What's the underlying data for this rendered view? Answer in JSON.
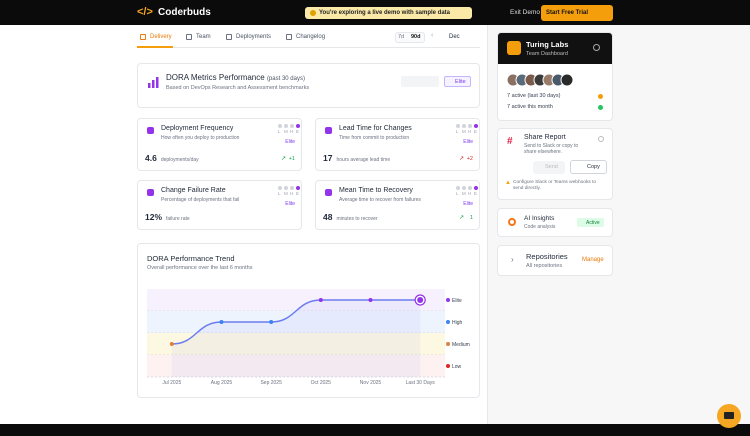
{
  "header": {
    "logo": "Coderbuds",
    "banner": "You're exploring a live demo with sample data",
    "exit": "Exit Demo",
    "trial": "Start Free Trial"
  },
  "tabs": [
    "Delivery",
    "Team",
    "Deployments",
    "Changelog"
  ],
  "range": [
    "7d",
    "90d"
  ],
  "month": "Dec",
  "summary": {
    "title": "DORA Metrics Performance",
    "period": "(past 30 days)",
    "subtitle": "Based on DevOps Research and Assessment benchmarks",
    "badge": "Elite"
  },
  "level_letters": [
    "L",
    "M",
    "H",
    "E"
  ],
  "metrics": [
    {
      "title": "Deployment Frequency",
      "desc": "How often you deploy to production",
      "badge": "Elite",
      "value": "4.6",
      "unit": "deployments/day",
      "trend": "+1",
      "trend_color": "#16a34a"
    },
    {
      "title": "Lead Time for Changes",
      "desc": "Time from commit to production",
      "badge": "Elite",
      "value": "17",
      "unit": "hours average lead time",
      "trend": "+2",
      "trend_color": "#dc2626"
    },
    {
      "title": "Change Failure Rate",
      "desc": "Percentage of deployments that fail",
      "badge": "Elite",
      "value": "12%",
      "unit": "failure rate"
    },
    {
      "title": "Mean Time to Recovery",
      "desc": "Average time to recover from failures",
      "badge": "Elite",
      "value": "48",
      "unit": "minutes to recover",
      "trend": "1",
      "trend_color": "#16a34a"
    }
  ],
  "chart_data": {
    "type": "line",
    "title": "DORA Performance Trend",
    "subtitle": "Overall performance over the last 6 months",
    "categories": [
      "Jul 2025",
      "Aug 2025",
      "Sep 2025",
      "Oct 2025",
      "Nov 2025",
      "Last 30 Days"
    ],
    "values": [
      "Medium",
      "High",
      "High",
      "Elite",
      "Elite",
      "Elite"
    ],
    "levels": [
      "Elite",
      "High",
      "Medium",
      "Low"
    ],
    "level_colors": [
      "#9333ea",
      "#3b82f6",
      "#e0803b",
      "#dc2626"
    ],
    "band_colors": [
      "#f6f1fd",
      "#eef4fd",
      "#fdf8e2",
      "#fdf1f1"
    ],
    "color": "#6b7cf0"
  },
  "sidebar": {
    "team": {
      "name": "Turing Labs",
      "subtitle": "Team Dashboard",
      "active_period": "7 active (last 30 days)",
      "active_month": "7 active this month"
    },
    "share": {
      "title": "Share Report",
      "desc": "Send to Slack or copy to share elsewhere.",
      "send": "Send",
      "copy": "Copy",
      "warning": "Configure Slack or Teams webhooks to send directly."
    },
    "ai": {
      "title": "AI Insights",
      "subtitle": "Code analysis",
      "status": "Active"
    },
    "repos": {
      "title": "Repositories",
      "subtitle": "All repositories",
      "action": "Manage"
    }
  }
}
